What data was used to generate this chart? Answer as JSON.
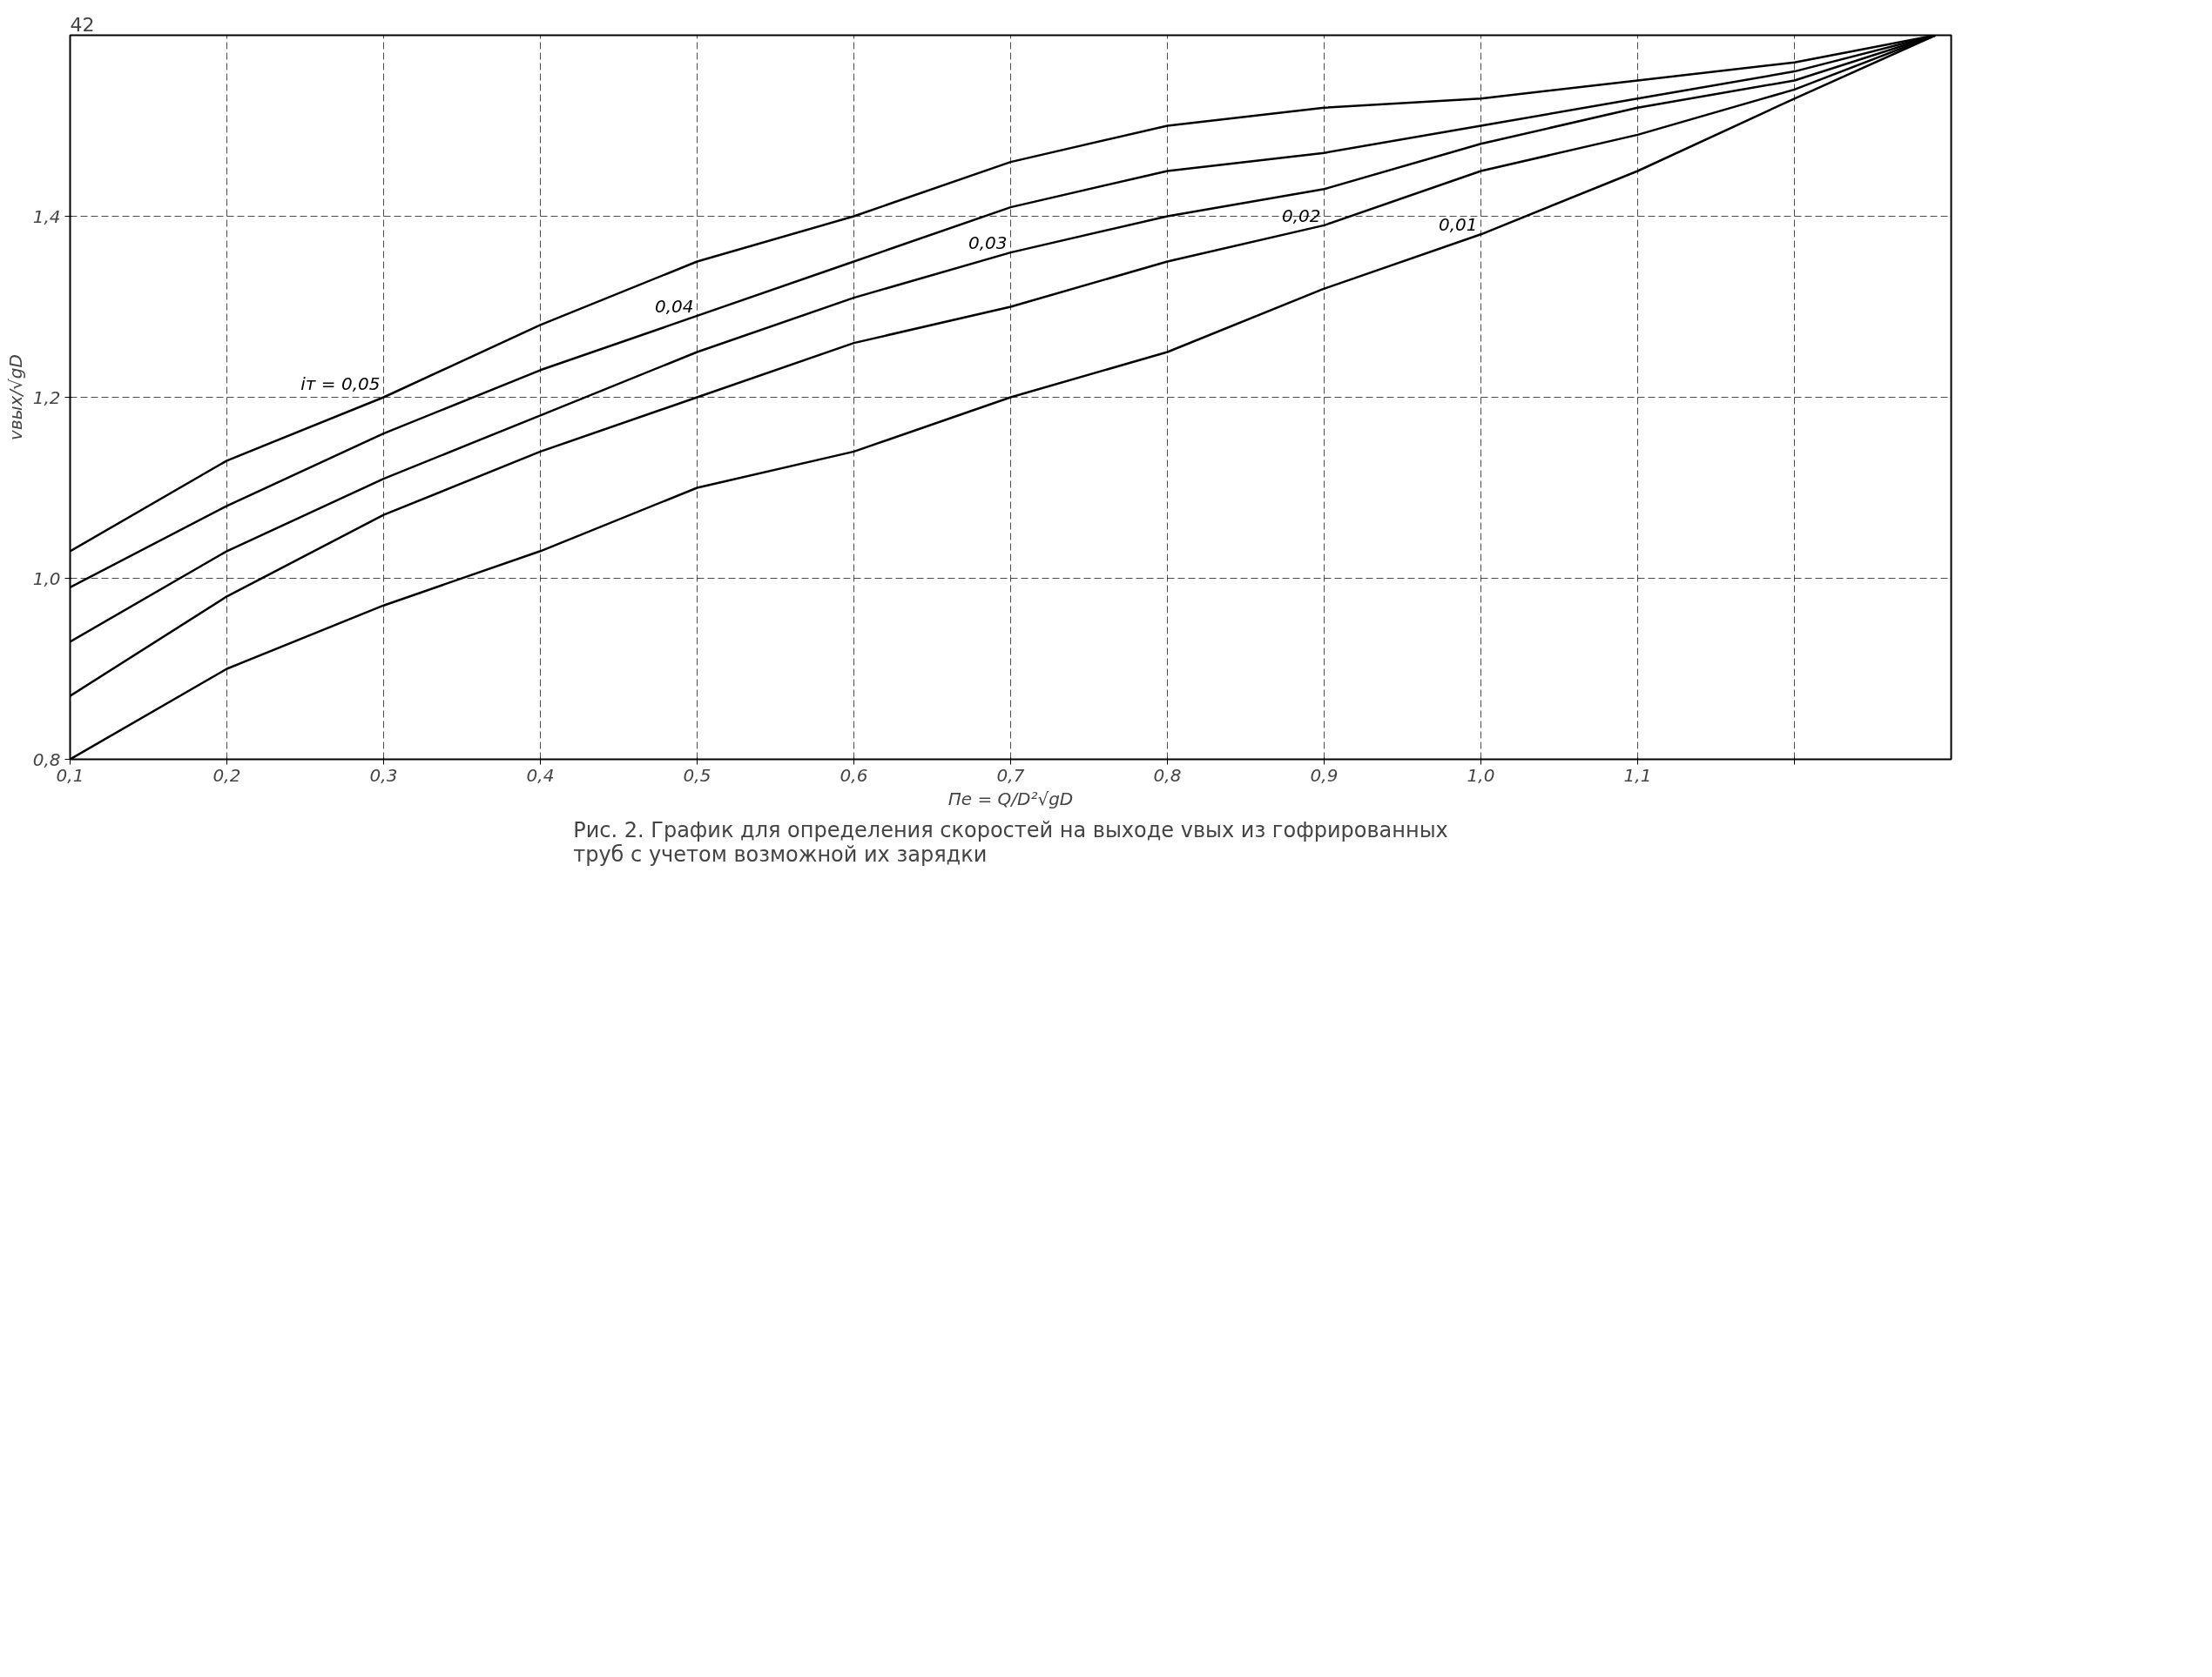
{
  "chart_data": {
    "type": "line",
    "title": "Рис. 2. График для определения скоростей на выходе vвых из гофрированных\nтруб с учетом возможной их зарядки",
    "xlabel": "Пе = Q/D²√gD",
    "ylabel": "vвых/√gD",
    "annotations": [
      "42"
    ],
    "x": [
      0.1,
      0.2,
      0.3,
      0.4,
      0.5,
      0.6,
      0.7,
      0.8,
      0.9,
      1.0,
      1.1,
      1.2,
      1.29
    ],
    "series": [
      {
        "name": "iт = 0,05",
        "color": "#000000",
        "values": [
          1.03,
          1.13,
          1.2,
          1.28,
          1.35,
          1.4,
          1.46,
          1.5,
          1.52,
          1.53,
          1.55,
          1.57,
          1.6
        ]
      },
      {
        "name": "0,04",
        "color": "#000000",
        "values": [
          0.99,
          1.08,
          1.16,
          1.23,
          1.29,
          1.35,
          1.41,
          1.45,
          1.47,
          1.5,
          1.53,
          1.56,
          1.6
        ]
      },
      {
        "name": "0,03",
        "color": "#000000",
        "values": [
          0.93,
          1.03,
          1.11,
          1.18,
          1.25,
          1.31,
          1.36,
          1.4,
          1.43,
          1.48,
          1.52,
          1.55,
          1.6
        ]
      },
      {
        "name": "0,02",
        "color": "#000000",
        "values": [
          0.87,
          0.98,
          1.07,
          1.14,
          1.2,
          1.26,
          1.3,
          1.35,
          1.39,
          1.45,
          1.49,
          1.54,
          1.6
        ]
      },
      {
        "name": "0,01",
        "color": "#000000",
        "values": [
          0.8,
          0.9,
          0.97,
          1.03,
          1.1,
          1.14,
          1.2,
          1.25,
          1.32,
          1.38,
          1.45,
          1.53,
          1.6
        ]
      }
    ],
    "xlim": [
      0.1,
      1.3
    ],
    "ylim": [
      0.8,
      1.6
    ],
    "xticks": [
      {
        "value": 0.1,
        "label": "0,1"
      },
      {
        "value": 0.2,
        "label": "0,2"
      },
      {
        "value": 0.3,
        "label": "0,3"
      },
      {
        "value": 0.4,
        "label": "0,4"
      },
      {
        "value": 0.5,
        "label": "0,5"
      },
      {
        "value": 0.6,
        "label": "0,6"
      },
      {
        "value": 0.7,
        "label": "0,7"
      },
      {
        "value": 0.8,
        "label": "0,8"
      },
      {
        "value": 0.9,
        "label": "0,9"
      },
      {
        "value": 1.0,
        "label": "1,0"
      },
      {
        "value": 1.1,
        "label": "1,1"
      },
      {
        "value": 1.2,
        "label": null
      }
    ],
    "yticks": [
      {
        "value": 0.8,
        "label": "0,8"
      },
      {
        "value": 1.0,
        "label": "1,0"
      },
      {
        "value": 1.2,
        "label": "1,2"
      },
      {
        "value": 1.4,
        "label": "1,4"
      }
    ],
    "grid": true,
    "line_style": "solid"
  }
}
